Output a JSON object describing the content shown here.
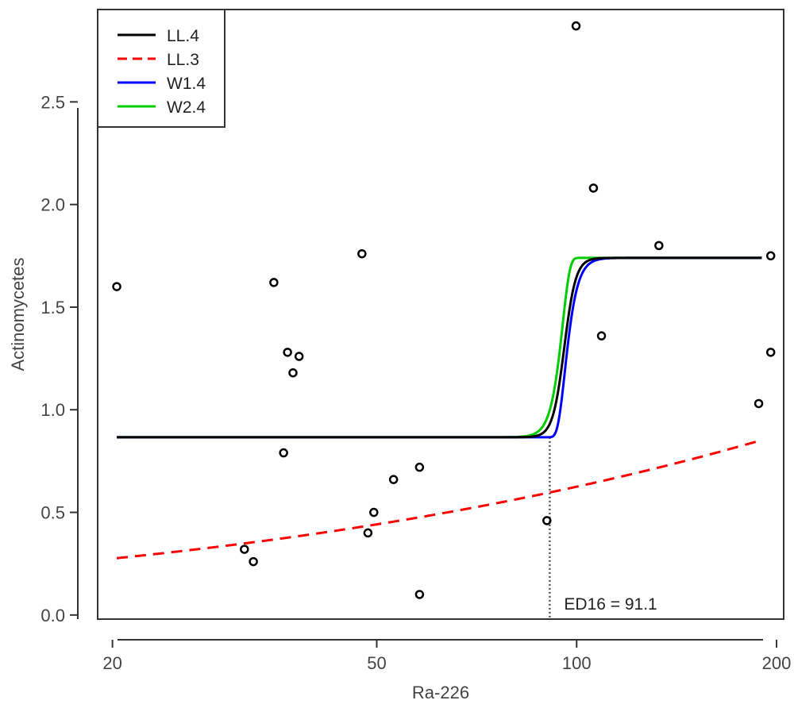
{
  "chart_data": {
    "type": "scatter",
    "xlabel": "Ra-226",
    "ylabel": "Actinomycetes",
    "x_scale": "log",
    "xlim": [
      19,
      205
    ],
    "ylim": [
      -0.02,
      2.95
    ],
    "x_ticks": [
      20,
      50,
      100,
      200
    ],
    "x_tick_labels": [
      "20",
      "50",
      "100",
      "200"
    ],
    "y_ticks": [
      0.0,
      0.5,
      1.0,
      1.5,
      2.0,
      2.5
    ],
    "y_tick_labels": [
      "0.0",
      "0.5",
      "1.0",
      "1.5",
      "2.0",
      "2.5"
    ],
    "points": [
      {
        "x": 20.3,
        "y": 1.6
      },
      {
        "x": 31.6,
        "y": 0.32
      },
      {
        "x": 32.6,
        "y": 0.26
      },
      {
        "x": 35.0,
        "y": 1.62
      },
      {
        "x": 36.2,
        "y": 0.79
      },
      {
        "x": 36.7,
        "y": 1.28
      },
      {
        "x": 37.4,
        "y": 1.18
      },
      {
        "x": 38.2,
        "y": 1.26
      },
      {
        "x": 47.5,
        "y": 1.76
      },
      {
        "x": 48.5,
        "y": 0.4
      },
      {
        "x": 49.5,
        "y": 0.5
      },
      {
        "x": 53.0,
        "y": 0.66
      },
      {
        "x": 58.0,
        "y": 0.72
      },
      {
        "x": 58.0,
        "y": 0.1
      },
      {
        "x": 90.2,
        "y": 0.46
      },
      {
        "x": 99.8,
        "y": 2.87
      },
      {
        "x": 106.0,
        "y": 2.08
      },
      {
        "x": 109.0,
        "y": 1.36
      },
      {
        "x": 133.0,
        "y": 1.8
      },
      {
        "x": 188.0,
        "y": 1.03
      },
      {
        "x": 196.0,
        "y": 1.28
      },
      {
        "x": 196.0,
        "y": 1.75
      }
    ],
    "series": [
      {
        "name": "LL.4",
        "color": "#000000",
        "dash": "solid",
        "model": "LL4",
        "params": {
          "b": -50,
          "c": 0.866,
          "d": 1.74,
          "e": 95.8
        }
      },
      {
        "name": "LL.3",
        "color": "#ff0000",
        "dash": "dashed",
        "model": "LL3",
        "params": {
          "b": -0.55,
          "d": 6.0,
          "e": 5000
        }
      },
      {
        "name": "W1.4",
        "color": "#0000ff",
        "dash": "solid",
        "model": "W14",
        "params": {
          "b": -40,
          "c": 0.866,
          "d": 1.74,
          "e": 96.0
        }
      },
      {
        "name": "W2.4",
        "color": "#00cc00",
        "dash": "solid",
        "model": "W24",
        "params": {
          "b": 40,
          "c": 0.866,
          "d": 1.74,
          "e": 95.3
        }
      }
    ],
    "curve_x_range": [
      20.3,
      190
    ],
    "ed": {
      "x": 91.1,
      "y": 0.866,
      "label": "ED16 = 91.1"
    },
    "legend_position": "top-left"
  }
}
